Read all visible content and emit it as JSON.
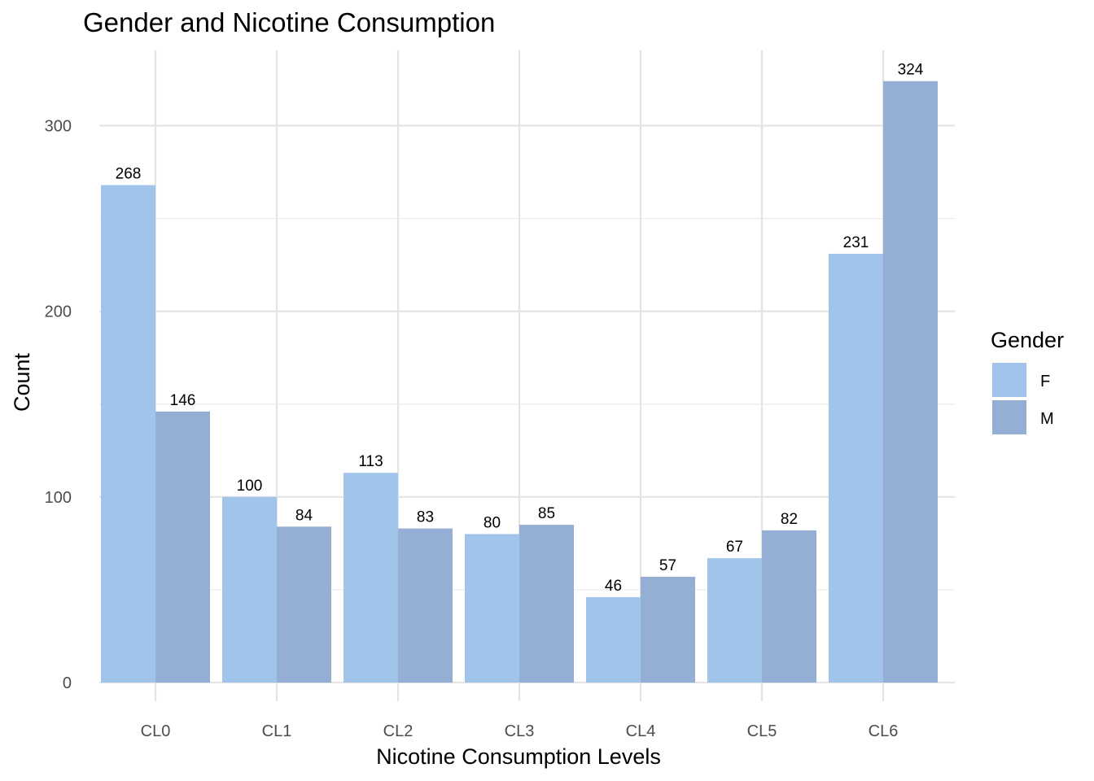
{
  "chart_data": {
    "type": "bar",
    "title": "Gender and Nicotine Consumption",
    "xlabel": "Nicotine Consumption Levels",
    "ylabel": "Count",
    "categories": [
      "CL0",
      "CL1",
      "CL2",
      "CL3",
      "CL4",
      "CL5",
      "CL6"
    ],
    "series": [
      {
        "name": "F",
        "color": "#a0c4ea",
        "values": [
          268,
          100,
          113,
          80,
          46,
          67,
          231
        ]
      },
      {
        "name": "M",
        "color": "#94aed4",
        "values": [
          146,
          84,
          83,
          85,
          57,
          82,
          324
        ]
      }
    ],
    "ylim": [
      0,
      324
    ],
    "y_ticks": [
      0,
      100,
      200,
      300
    ],
    "grid": true,
    "legend": {
      "title": "Gender",
      "position": "right"
    }
  }
}
